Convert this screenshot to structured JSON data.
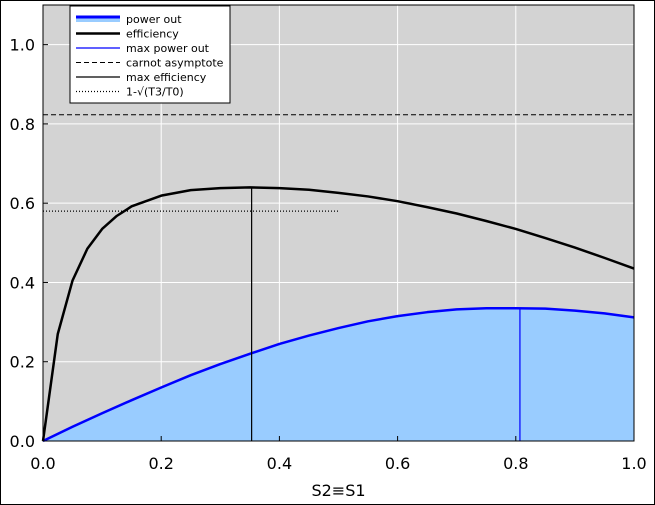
{
  "chart_data": {
    "type": "area",
    "xlabel": "S2≡S1",
    "ylabel": "",
    "xlim": [
      0.0,
      1.0
    ],
    "ylim": [
      0.0,
      1.1
    ],
    "xticks": [
      "0.0",
      "0.2",
      "0.4",
      "0.6",
      "0.8",
      "1.0"
    ],
    "yticks": [
      "0.0",
      "0.2",
      "0.4",
      "0.6",
      "0.8",
      "1.0"
    ],
    "grid": true,
    "legend_position": "top-left",
    "background_color": "#d3d3d3",
    "series": [
      {
        "name": "power out",
        "style": "thick blue line with light blue fill",
        "color": "#0000ff",
        "fill": "#99ccff",
        "x": [
          0.0,
          0.05,
          0.1,
          0.15,
          0.2,
          0.25,
          0.3,
          0.35,
          0.4,
          0.45,
          0.5,
          0.55,
          0.6,
          0.65,
          0.7,
          0.75,
          0.8,
          0.85,
          0.9,
          0.95,
          1.0
        ],
        "y": [
          0.0,
          0.036,
          0.07,
          0.103,
          0.135,
          0.166,
          0.194,
          0.22,
          0.245,
          0.266,
          0.285,
          0.302,
          0.315,
          0.325,
          0.332,
          0.335,
          0.335,
          0.334,
          0.329,
          0.322,
          0.312
        ]
      },
      {
        "name": "efficiency",
        "style": "thick black line",
        "color": "#000000",
        "x": [
          0.0,
          0.025,
          0.05,
          0.075,
          0.1,
          0.125,
          0.15,
          0.2,
          0.25,
          0.3,
          0.35,
          0.4,
          0.45,
          0.5,
          0.55,
          0.6,
          0.65,
          0.7,
          0.75,
          0.8,
          0.85,
          0.9,
          0.95,
          1.0
        ],
        "y": [
          0.0,
          0.27,
          0.405,
          0.485,
          0.535,
          0.568,
          0.592,
          0.619,
          0.633,
          0.638,
          0.64,
          0.638,
          0.634,
          0.626,
          0.617,
          0.605,
          0.59,
          0.574,
          0.555,
          0.535,
          0.512,
          0.488,
          0.462,
          0.435
        ]
      },
      {
        "name": "max power out",
        "style": "thin blue vertical line",
        "color": "#0000ff",
        "x": [
          0.807,
          0.807
        ],
        "y": [
          0.0,
          0.335
        ]
      },
      {
        "name": "carnot asymptote",
        "style": "dashed black horizontal line",
        "color": "#000000",
        "x": [
          0.0,
          1.0
        ],
        "y": [
          0.823,
          0.823
        ]
      },
      {
        "name": "max efficiency",
        "style": "thin black vertical line",
        "color": "#000000",
        "x": [
          0.353,
          0.353
        ],
        "y": [
          0.0,
          0.64
        ]
      },
      {
        "name": "1-√(T3/T0)",
        "style": "dotted black horizontal line",
        "color": "#000000",
        "x": [
          0.0,
          0.5
        ],
        "y": [
          0.58,
          0.58
        ]
      }
    ]
  }
}
